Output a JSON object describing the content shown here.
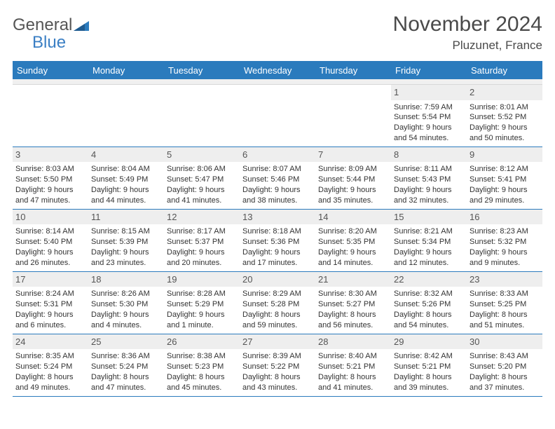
{
  "logo": {
    "word1": "General",
    "word2": "Blue"
  },
  "title": "November 2024",
  "location": "Pluzunet, France",
  "weekdays": [
    "Sunday",
    "Monday",
    "Tuesday",
    "Wednesday",
    "Thursday",
    "Friday",
    "Saturday"
  ],
  "colors": {
    "header_bg": "#2b7bbd",
    "header_text": "#ffffff",
    "daynum_bg": "#eeeeee",
    "border": "#2b7bbd",
    "text": "#333333"
  },
  "weeks": [
    [
      {
        "n": "",
        "sr": "",
        "ss": "",
        "dl1": "",
        "dl2": ""
      },
      {
        "n": "",
        "sr": "",
        "ss": "",
        "dl1": "",
        "dl2": ""
      },
      {
        "n": "",
        "sr": "",
        "ss": "",
        "dl1": "",
        "dl2": ""
      },
      {
        "n": "",
        "sr": "",
        "ss": "",
        "dl1": "",
        "dl2": ""
      },
      {
        "n": "",
        "sr": "",
        "ss": "",
        "dl1": "",
        "dl2": ""
      },
      {
        "n": "1",
        "sr": "Sunrise: 7:59 AM",
        "ss": "Sunset: 5:54 PM",
        "dl1": "Daylight: 9 hours",
        "dl2": "and 54 minutes."
      },
      {
        "n": "2",
        "sr": "Sunrise: 8:01 AM",
        "ss": "Sunset: 5:52 PM",
        "dl1": "Daylight: 9 hours",
        "dl2": "and 50 minutes."
      }
    ],
    [
      {
        "n": "3",
        "sr": "Sunrise: 8:03 AM",
        "ss": "Sunset: 5:50 PM",
        "dl1": "Daylight: 9 hours",
        "dl2": "and 47 minutes."
      },
      {
        "n": "4",
        "sr": "Sunrise: 8:04 AM",
        "ss": "Sunset: 5:49 PM",
        "dl1": "Daylight: 9 hours",
        "dl2": "and 44 minutes."
      },
      {
        "n": "5",
        "sr": "Sunrise: 8:06 AM",
        "ss": "Sunset: 5:47 PM",
        "dl1": "Daylight: 9 hours",
        "dl2": "and 41 minutes."
      },
      {
        "n": "6",
        "sr": "Sunrise: 8:07 AM",
        "ss": "Sunset: 5:46 PM",
        "dl1": "Daylight: 9 hours",
        "dl2": "and 38 minutes."
      },
      {
        "n": "7",
        "sr": "Sunrise: 8:09 AM",
        "ss": "Sunset: 5:44 PM",
        "dl1": "Daylight: 9 hours",
        "dl2": "and 35 minutes."
      },
      {
        "n": "8",
        "sr": "Sunrise: 8:11 AM",
        "ss": "Sunset: 5:43 PM",
        "dl1": "Daylight: 9 hours",
        "dl2": "and 32 minutes."
      },
      {
        "n": "9",
        "sr": "Sunrise: 8:12 AM",
        "ss": "Sunset: 5:41 PM",
        "dl1": "Daylight: 9 hours",
        "dl2": "and 29 minutes."
      }
    ],
    [
      {
        "n": "10",
        "sr": "Sunrise: 8:14 AM",
        "ss": "Sunset: 5:40 PM",
        "dl1": "Daylight: 9 hours",
        "dl2": "and 26 minutes."
      },
      {
        "n": "11",
        "sr": "Sunrise: 8:15 AM",
        "ss": "Sunset: 5:39 PM",
        "dl1": "Daylight: 9 hours",
        "dl2": "and 23 minutes."
      },
      {
        "n": "12",
        "sr": "Sunrise: 8:17 AM",
        "ss": "Sunset: 5:37 PM",
        "dl1": "Daylight: 9 hours",
        "dl2": "and 20 minutes."
      },
      {
        "n": "13",
        "sr": "Sunrise: 8:18 AM",
        "ss": "Sunset: 5:36 PM",
        "dl1": "Daylight: 9 hours",
        "dl2": "and 17 minutes."
      },
      {
        "n": "14",
        "sr": "Sunrise: 8:20 AM",
        "ss": "Sunset: 5:35 PM",
        "dl1": "Daylight: 9 hours",
        "dl2": "and 14 minutes."
      },
      {
        "n": "15",
        "sr": "Sunrise: 8:21 AM",
        "ss": "Sunset: 5:34 PM",
        "dl1": "Daylight: 9 hours",
        "dl2": "and 12 minutes."
      },
      {
        "n": "16",
        "sr": "Sunrise: 8:23 AM",
        "ss": "Sunset: 5:32 PM",
        "dl1": "Daylight: 9 hours",
        "dl2": "and 9 minutes."
      }
    ],
    [
      {
        "n": "17",
        "sr": "Sunrise: 8:24 AM",
        "ss": "Sunset: 5:31 PM",
        "dl1": "Daylight: 9 hours",
        "dl2": "and 6 minutes."
      },
      {
        "n": "18",
        "sr": "Sunrise: 8:26 AM",
        "ss": "Sunset: 5:30 PM",
        "dl1": "Daylight: 9 hours",
        "dl2": "and 4 minutes."
      },
      {
        "n": "19",
        "sr": "Sunrise: 8:28 AM",
        "ss": "Sunset: 5:29 PM",
        "dl1": "Daylight: 9 hours",
        "dl2": "and 1 minute."
      },
      {
        "n": "20",
        "sr": "Sunrise: 8:29 AM",
        "ss": "Sunset: 5:28 PM",
        "dl1": "Daylight: 8 hours",
        "dl2": "and 59 minutes."
      },
      {
        "n": "21",
        "sr": "Sunrise: 8:30 AM",
        "ss": "Sunset: 5:27 PM",
        "dl1": "Daylight: 8 hours",
        "dl2": "and 56 minutes."
      },
      {
        "n": "22",
        "sr": "Sunrise: 8:32 AM",
        "ss": "Sunset: 5:26 PM",
        "dl1": "Daylight: 8 hours",
        "dl2": "and 54 minutes."
      },
      {
        "n": "23",
        "sr": "Sunrise: 8:33 AM",
        "ss": "Sunset: 5:25 PM",
        "dl1": "Daylight: 8 hours",
        "dl2": "and 51 minutes."
      }
    ],
    [
      {
        "n": "24",
        "sr": "Sunrise: 8:35 AM",
        "ss": "Sunset: 5:24 PM",
        "dl1": "Daylight: 8 hours",
        "dl2": "and 49 minutes."
      },
      {
        "n": "25",
        "sr": "Sunrise: 8:36 AM",
        "ss": "Sunset: 5:24 PM",
        "dl1": "Daylight: 8 hours",
        "dl2": "and 47 minutes."
      },
      {
        "n": "26",
        "sr": "Sunrise: 8:38 AM",
        "ss": "Sunset: 5:23 PM",
        "dl1": "Daylight: 8 hours",
        "dl2": "and 45 minutes."
      },
      {
        "n": "27",
        "sr": "Sunrise: 8:39 AM",
        "ss": "Sunset: 5:22 PM",
        "dl1": "Daylight: 8 hours",
        "dl2": "and 43 minutes."
      },
      {
        "n": "28",
        "sr": "Sunrise: 8:40 AM",
        "ss": "Sunset: 5:21 PM",
        "dl1": "Daylight: 8 hours",
        "dl2": "and 41 minutes."
      },
      {
        "n": "29",
        "sr": "Sunrise: 8:42 AM",
        "ss": "Sunset: 5:21 PM",
        "dl1": "Daylight: 8 hours",
        "dl2": "and 39 minutes."
      },
      {
        "n": "30",
        "sr": "Sunrise: 8:43 AM",
        "ss": "Sunset: 5:20 PM",
        "dl1": "Daylight: 8 hours",
        "dl2": "and 37 minutes."
      }
    ]
  ]
}
